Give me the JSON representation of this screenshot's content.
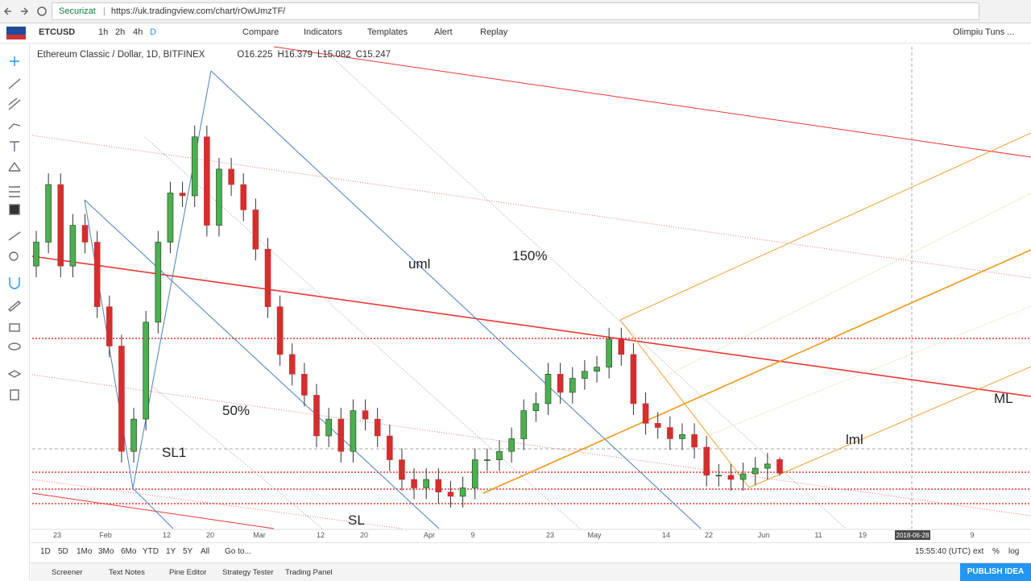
{
  "browser": {
    "security": "Securizat",
    "url": "https://uk.tradingview.com/chart/rOwUmzTF/"
  },
  "toolbar": {
    "symbol": "ETCUSD",
    "intervals": [
      "1h",
      "2h",
      "4h",
      "D"
    ],
    "buttons": [
      "Compare",
      "Indicators",
      "Templates",
      "Alert",
      "Replay"
    ],
    "user": "Olimpiu Tuns ..."
  },
  "legend": {
    "title": "Ethereum Classic / Dollar, 1D, BITFINEX",
    "ohlc_labels": [
      "O",
      "H",
      "L",
      "C"
    ]
  },
  "chart_data": {
    "type": "candlestick",
    "ylim": [
      11.3,
      45.5
    ],
    "up_color": "#4caf50",
    "down_color": "#d32f2f",
    "ohlc": [
      [
        30,
        32.5,
        29.2,
        31.7
      ],
      [
        31.7,
        36.6,
        30.9,
        35.8
      ],
      [
        35.8,
        36.6,
        29.2,
        30
      ],
      [
        30,
        33.7,
        29.2,
        32.9
      ],
      [
        32.9,
        33.7,
        30.9,
        31.7
      ],
      [
        31.7,
        32.5,
        26.3,
        27.1
      ],
      [
        27.1,
        27.9,
        23.5,
        24.3
      ],
      [
        24.3,
        25.1,
        16,
        16.8
      ],
      [
        16.8,
        19.9,
        16,
        19.1
      ],
      [
        19.1,
        26.8,
        18.3,
        26
      ],
      [
        26,
        32.5,
        25.2,
        31.7
      ],
      [
        31.7,
        36,
        30.9,
        35.2
      ],
      [
        35.2,
        36,
        34.2,
        35
      ],
      [
        35,
        40,
        34.2,
        39.2
      ],
      [
        39.2,
        40,
        32.1,
        32.9
      ],
      [
        32.9,
        37.7,
        32.1,
        36.9
      ],
      [
        36.9,
        37.7,
        35,
        35.8
      ],
      [
        35.8,
        36.6,
        33.2,
        34
      ],
      [
        34,
        34.8,
        30.4,
        31.2
      ],
      [
        31.2,
        32,
        26.3,
        27.1
      ],
      [
        27.1,
        27.9,
        22.9,
        23.7
      ],
      [
        23.7,
        24.5,
        21.5,
        22.3
      ],
      [
        22.3,
        23.1,
        20,
        20.8
      ],
      [
        20.8,
        21.6,
        17.1,
        17.9
      ],
      [
        17.9,
        19.9,
        17.1,
        19.1
      ],
      [
        19.1,
        19.9,
        16,
        16.8
      ],
      [
        16.8,
        20.5,
        16,
        19.7
      ],
      [
        19.7,
        20.5,
        18.3,
        19.1
      ],
      [
        19.1,
        19.9,
        17.1,
        17.9
      ],
      [
        17.9,
        18.7,
        15.4,
        16.2
      ],
      [
        16.2,
        17,
        14,
        14.8
      ],
      [
        14.8,
        15.6,
        13.4,
        14.2
      ],
      [
        14.2,
        15.6,
        13.4,
        14.8
      ],
      [
        14.8,
        15.6,
        13.1,
        13.9
      ],
      [
        13.9,
        14.7,
        12.8,
        13.6
      ],
      [
        13.6,
        15,
        12.8,
        14.2
      ],
      [
        14.2,
        17,
        13.4,
        16.2
      ],
      [
        16.2,
        17,
        15.4,
        16.2
      ],
      [
        16.2,
        17.6,
        15.4,
        16.8
      ],
      [
        16.8,
        18.5,
        16,
        17.7
      ],
      [
        17.7,
        20.5,
        16.9,
        19.7
      ],
      [
        19.7,
        21,
        18.9,
        20.2
      ],
      [
        20.2,
        23.1,
        19.4,
        22.3
      ],
      [
        22.3,
        23.1,
        20.2,
        21
      ],
      [
        21,
        22.8,
        20.2,
        22
      ],
      [
        22,
        23.3,
        21.2,
        22.5
      ],
      [
        22.5,
        23.6,
        21.7,
        22.8
      ],
      [
        22.8,
        25.6,
        22,
        24.8
      ],
      [
        24.8,
        25.6,
        22.9,
        23.7
      ],
      [
        23.7,
        24.5,
        19.4,
        20.2
      ],
      [
        20.2,
        21,
        18,
        18.8
      ],
      [
        18.8,
        19.6,
        17.7,
        18.5
      ],
      [
        18.5,
        19.3,
        16.9,
        17.7
      ],
      [
        17.7,
        18.8,
        16.9,
        18
      ],
      [
        18,
        18.8,
        16.3,
        17.1
      ],
      [
        17.1,
        17.9,
        14.3,
        15.1
      ],
      [
        15.1,
        15.9,
        14.3,
        15.1
      ],
      [
        15.1,
        15.9,
        14,
        14.8
      ],
      [
        14.8,
        16,
        14,
        15.2
      ],
      [
        15.2,
        16.4,
        14.4,
        15.6
      ],
      [
        15.6,
        16.7,
        14.8,
        15.9
      ],
      [
        16.225,
        16.379,
        15.082,
        15.247
      ]
    ],
    "x_labels": [
      "23",
      "Feb",
      "12",
      "20",
      "Mar",
      "12",
      "20",
      "Apr",
      "9",
      "23",
      "May",
      "14",
      "22",
      "Jun",
      "11",
      "19",
      "2018-06-28",
      "9"
    ],
    "annotations": [
      "uml",
      "150%",
      "50%",
      "SL1",
      "SL",
      "lml",
      "ML"
    ]
  },
  "bottom_bar": {
    "ranges": [
      "1D",
      "5D",
      "1Mo",
      "3Mo",
      "6Mo",
      "YTD",
      "1Y",
      "5Y",
      "All"
    ],
    "goto": "Go to...",
    "time": "15:55:40 (UTC)",
    "options": [
      "ext",
      "%",
      "log"
    ]
  },
  "tabs": [
    "Screener",
    "Text Notes",
    "Pine Editor",
    "Strategy Tester",
    "Trading Panel"
  ],
  "publish": "PUBLISH IDEA"
}
